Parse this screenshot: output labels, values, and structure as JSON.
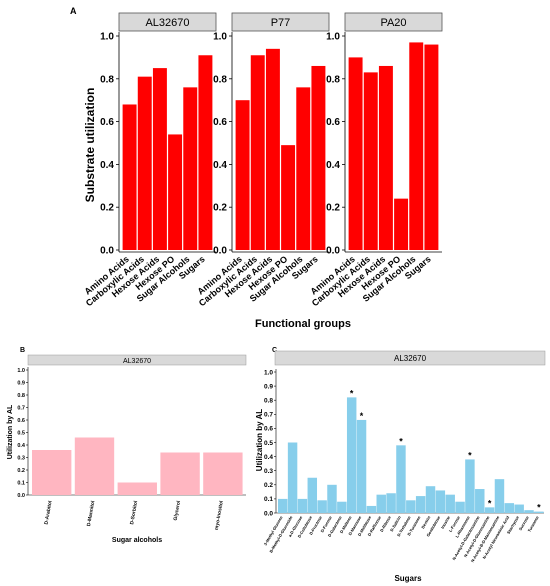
{
  "chart_data": [
    {
      "panel_label": "A",
      "type": "bar",
      "xlabel": "Functional groups",
      "ylabel": "Substrate utilization",
      "ylim": [
        0,
        1.0
      ],
      "yticks": [
        "0.0",
        "0.2",
        "0.4",
        "0.6",
        "0.8",
        "1.0"
      ],
      "categories": [
        "Amino Acids",
        "Carboxylic Acids",
        "Hexose Acids",
        "Hexose PO",
        "Sugar Alcohols",
        "Sugars"
      ],
      "bar_color": "#ff0000",
      "facet_strip_color": "#d9d9d9",
      "grid": false,
      "facets": [
        {
          "name": "AL32670",
          "values": [
            0.68,
            0.81,
            0.85,
            0.54,
            0.76,
            0.91
          ]
        },
        {
          "name": "P77",
          "values": [
            0.7,
            0.91,
            0.94,
            0.49,
            0.76,
            0.86
          ]
        },
        {
          "name": "PA20",
          "values": [
            0.9,
            0.83,
            0.86,
            0.24,
            0.97,
            0.96
          ]
        }
      ]
    },
    {
      "panel_label": "B",
      "type": "bar",
      "title": "AL32670",
      "xlabel": "Sugar alcohols",
      "ylabel": "Utilization by AL",
      "ylim": [
        0,
        1.0
      ],
      "yticks": [
        "0.0",
        "0.1",
        "0.2",
        "0.3",
        "0.4",
        "0.5",
        "0.6",
        "0.7",
        "0.8",
        "0.9",
        "1.0"
      ],
      "categories": [
        "D-Arabitol",
        "D-Mannitol",
        "D-Sorbitol",
        "Glycerol",
        "myo-Inositol"
      ],
      "values": [
        0.36,
        0.46,
        0.1,
        0.34,
        0.34
      ],
      "bar_color": "#ffb6c1",
      "grid": false
    },
    {
      "panel_label": "C",
      "type": "bar",
      "title": "AL32670",
      "xlabel": "Sugars",
      "ylabel": "Utilization by AL",
      "ylim": [
        0,
        1.0
      ],
      "yticks": [
        "0.0",
        "0.1",
        "0.2",
        "0.3",
        "0.4",
        "0.5",
        "0.6",
        "0.7",
        "0.8",
        "0.9",
        "1.0"
      ],
      "categories": [
        "3-Methyl Glucose",
        "B-Methyl-D-Glucoside",
        "a-D-Glucose",
        "D-Cellobiose",
        "D-Fructose",
        "D-Fucose",
        "D-Galactose",
        "D-Maltose",
        "D-Mannose",
        "D-Melibiose",
        "D-Raffinose",
        "D-Ribose",
        "D-Salicin",
        "D-Trehalose",
        "D-Turanose",
        "Dextrin",
        "Gentiobiose",
        "Inosine",
        "L-Fucose",
        "L-Rhamnose",
        "N-Acetyl-D-Galactosamine",
        "N-Acetyl-D-Glucosamine",
        "N-Acetyl-B-D-Mannosamine",
        "N-Acetyl Neuraminic Acid",
        "Stachyose",
        "Sucrose",
        "Turanose"
      ],
      "values": [
        0.1,
        0.5,
        0.1,
        0.25,
        0.09,
        0.2,
        0.08,
        0.82,
        0.66,
        0.05,
        0.13,
        0.14,
        0.48,
        0.09,
        0.12,
        0.19,
        0.16,
        0.13,
        0.08,
        0.38,
        0.17,
        0.04,
        0.24,
        0.07,
        0.06,
        0.02,
        0.01
      ],
      "significant": [
        false,
        false,
        false,
        false,
        false,
        false,
        false,
        true,
        true,
        false,
        false,
        false,
        true,
        false,
        false,
        false,
        false,
        false,
        false,
        true,
        false,
        true,
        false,
        false,
        false,
        false,
        true
      ],
      "significance_marker": "*",
      "bar_color": "#87ceeb",
      "grid": false
    }
  ]
}
